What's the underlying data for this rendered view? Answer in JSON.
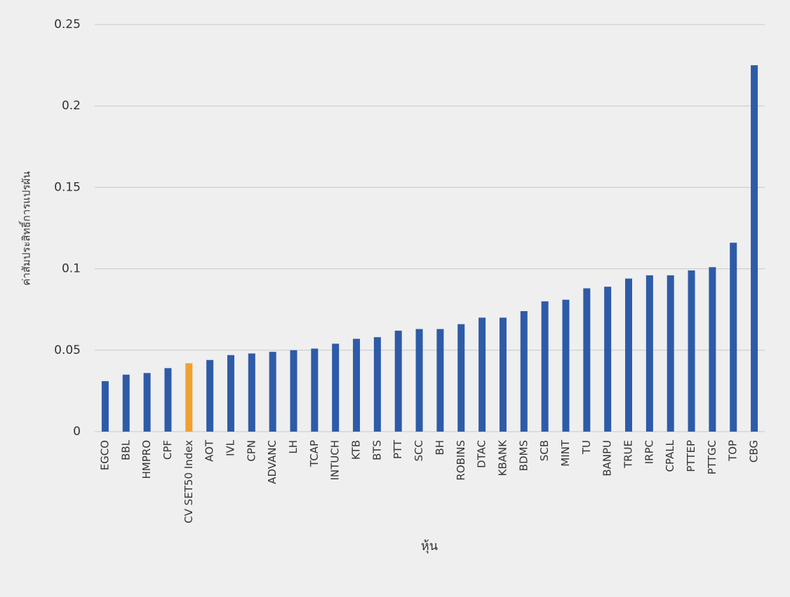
{
  "chart_data": {
    "type": "bar",
    "y_label": "ค่าสัมประสิทธิ์การแปรผัน",
    "x_label": "หุ้น",
    "categories": [
      "EGCO",
      "BBL",
      "HMPRO",
      "CPF",
      "CV SET50 Index",
      "AOT",
      "IVL",
      "CPN",
      "ADVANC",
      "LH",
      "TCAP",
      "INTUCH",
      "KTB",
      "BTS",
      "PTT",
      "SCC",
      "BH",
      "ROBINS",
      "DTAC",
      "KBANK",
      "BDMS",
      "SCB",
      "MINT",
      "TU",
      "BANPU",
      "TRUE",
      "IRPC",
      "CPALL",
      "PTTEP",
      "PTTGC",
      "TOP",
      "CBG"
    ],
    "values": [
      0.031,
      0.035,
      0.036,
      0.039,
      0.042,
      0.044,
      0.047,
      0.048,
      0.049,
      0.05,
      0.051,
      0.054,
      0.057,
      0.058,
      0.062,
      0.063,
      0.063,
      0.066,
      0.07,
      0.07,
      0.074,
      0.08,
      0.081,
      0.088,
      0.089,
      0.094,
      0.096,
      0.096,
      0.099,
      0.101,
      0.116,
      0.225
    ],
    "colors": [
      "#2e5ba8",
      "#2e5ba8",
      "#2e5ba8",
      "#2e5ba8",
      "#f0a030",
      "#2e5ba8",
      "#2e5ba8",
      "#2e5ba8",
      "#2e5ba8",
      "#2e5ba8",
      "#2e5ba8",
      "#2e5ba8",
      "#2e5ba8",
      "#2e5ba8",
      "#2e5ba8",
      "#2e5ba8",
      "#2e5ba8",
      "#2e5ba8",
      "#2e5ba8",
      "#2e5ba8",
      "#2e5ba8",
      "#2e5ba8",
      "#2e5ba8",
      "#2e5ba8",
      "#2e5ba8",
      "#2e5ba8",
      "#2e5ba8",
      "#2e5ba8",
      "#2e5ba8",
      "#2e5ba8",
      "#2e5ba8",
      "#2e5ba8"
    ],
    "ylim": [
      0,
      0.25
    ],
    "yticks": [
      0,
      0.05,
      0.1,
      0.15,
      0.2,
      0.25
    ],
    "grid": true
  }
}
